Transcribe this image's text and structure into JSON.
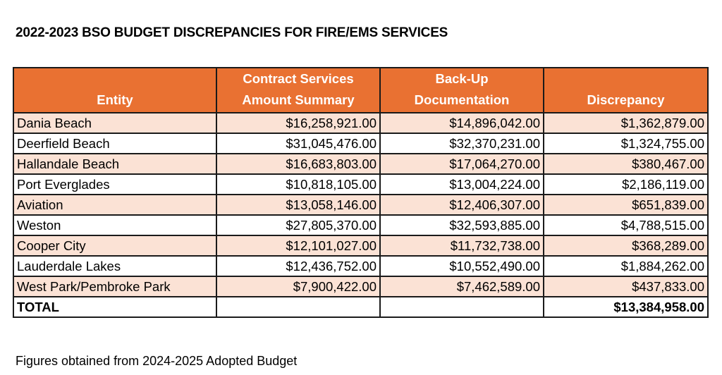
{
  "title": "2022-2023 BSO BUDGET DISCREPANCIES FOR FIRE/EMS SERVICES",
  "headers": {
    "entity": "Entity",
    "contract_1": "Contract Services",
    "contract_2": "Amount Summary",
    "backup_1": "Back-Up",
    "backup_2": "Documentation",
    "discrepancy": "Discrepancy"
  },
  "rows": [
    {
      "entity": "Dania Beach",
      "contract": "$16,258,921.00",
      "backup": "$14,896,042.00",
      "discrepancy": "$1,362,879.00"
    },
    {
      "entity": "Deerfield Beach",
      "contract": "$31,045,476.00",
      "backup": "$32,370,231.00",
      "discrepancy": "$1,324,755.00"
    },
    {
      "entity": "Hallandale Beach",
      "contract": "$16,683,803.00",
      "backup": "$17,064,270.00",
      "discrepancy": "$380,467.00"
    },
    {
      "entity": "Port Everglades",
      "contract": "$10,818,105.00",
      "backup": "$13,004,224.00",
      "discrepancy": "$2,186,119.00"
    },
    {
      "entity": "Aviation",
      "contract": "$13,058,146.00",
      "backup": "$12,406,307.00",
      "discrepancy": "$651,839.00"
    },
    {
      "entity": "Weston",
      "contract": "$27,805,370.00",
      "backup": "$32,593,885.00",
      "discrepancy": "$4,788,515.00"
    },
    {
      "entity": "Cooper City",
      "contract": "$12,101,027.00",
      "backup": "$11,732,738.00",
      "discrepancy": "$368,289.00"
    },
    {
      "entity": "Lauderdale Lakes",
      "contract": "$12,436,752.00",
      "backup": "$10,552,490.00",
      "discrepancy": "$1,884,262.00"
    },
    {
      "entity": "West Park/Pembroke Park",
      "contract": "$7,900,422.00",
      "backup": "$7,462,589.00",
      "discrepancy": "$437,833.00"
    }
  ],
  "total": {
    "label": "TOTAL",
    "contract": "",
    "backup": "",
    "discrepancy": "$13,384,958.00"
  },
  "footnote": "Figures obtained from 2024-2025 Adopted Budget",
  "colors": {
    "header_bg": "#e97132",
    "alt_row_bg": "#fbe2d5"
  }
}
